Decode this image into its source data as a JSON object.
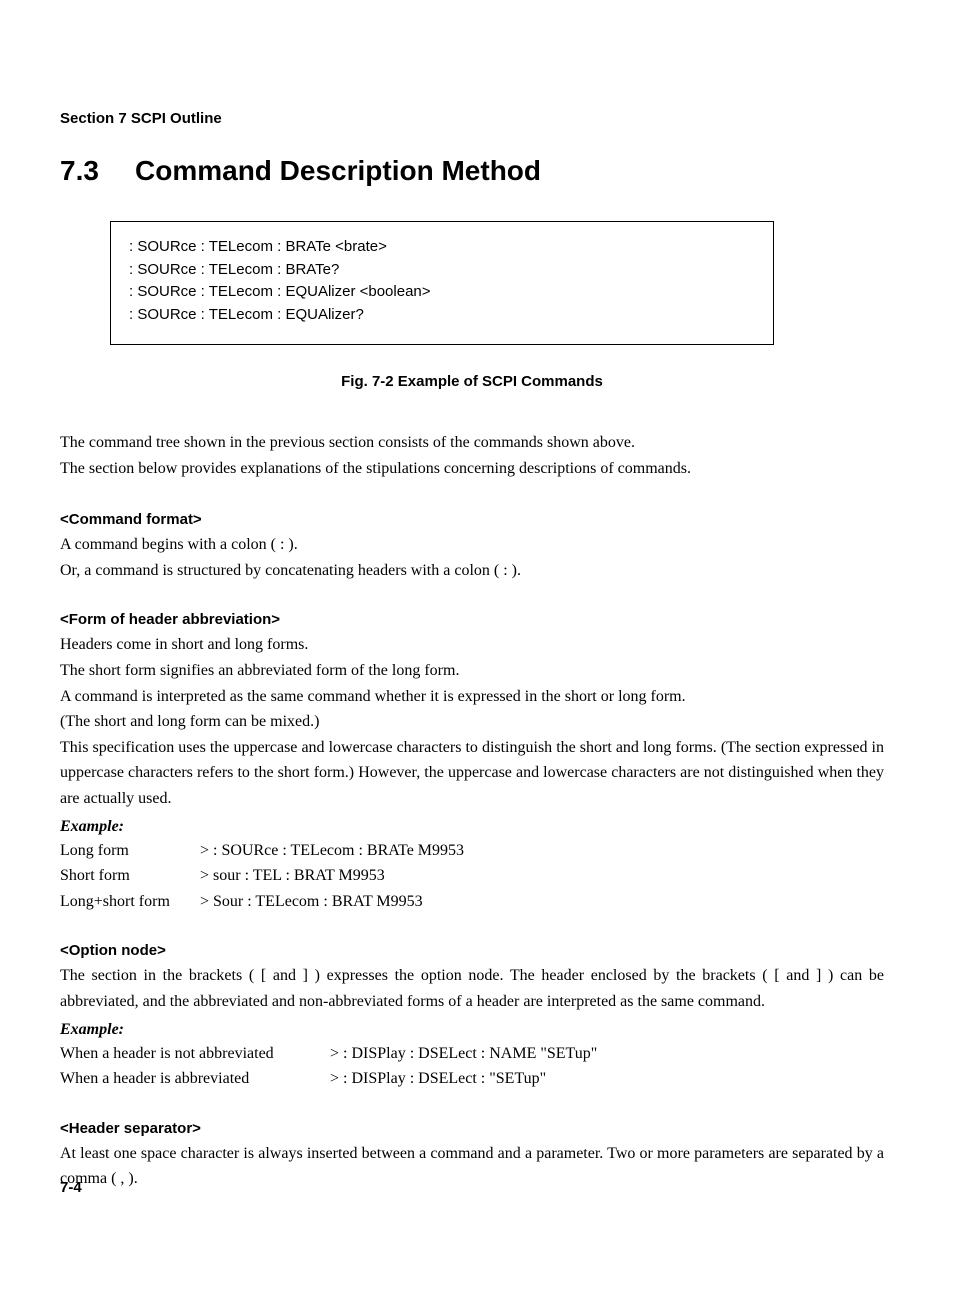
{
  "section_header": "Section 7   SCPI Outline",
  "title_number": "7.3",
  "title_text": "Command Description Method",
  "code_box": {
    "lines": [
      ": SOURce : TELecom : BRATe <brate>",
      ": SOURce : TELecom : BRATe?",
      ": SOURce : TELecom : EQUAlizer <boolean>",
      ": SOURce : TELecom : EQUAlizer?"
    ]
  },
  "fig_caption": "Fig. 7-2   Example of SCPI Commands",
  "intro": [
    "The command tree shown in the previous section consists of the commands shown above.",
    "The section below provides explanations of the stipulations concerning descriptions of commands."
  ],
  "sections": {
    "command_format": {
      "heading": "<Command format>",
      "paras": [
        "A command begins with a colon ( : ).",
        "Or, a command is structured by concatenating headers with a colon ( : )."
      ]
    },
    "header_abbrev": {
      "heading": "<Form of header abbreviation>",
      "paras": [
        "Headers come in short and long forms.",
        "The short form signifies an abbreviated form of the long form.",
        "A command is interpreted as the same command whether it is expressed in the short or long form.",
        "(The short and long form can be mixed.)",
        "This specification uses the uppercase and lowercase characters to distinguish the short and long forms.  (The section expressed in uppercase characters refers to the short form.)  However, the uppercase and lowercase characters are not distinguished when they are actually used."
      ],
      "example_label": "Example:",
      "examples": [
        {
          "label": "Long form",
          "value": "> : SOURce : TELecom : BRATe M9953"
        },
        {
          "label": "Short form",
          "value": "> sour : TEL : BRAT M9953"
        },
        {
          "label": "Long+short form",
          "value": "> Sour : TELecom : BRAT M9953"
        }
      ]
    },
    "option_node": {
      "heading": "<Option node>",
      "paras": [
        "The section in the brackets ( [ and ] ) expresses the option node.  The header enclosed by the brackets ( [ and ] ) can be abbreviated, and the abbreviated and non-abbreviated forms of a header are interpreted as the same command."
      ],
      "example_label": "Example:",
      "examples": [
        {
          "label": "When a header is not abbreviated",
          "value": "> : DISPlay : DSELect : NAME \"SETup\""
        },
        {
          "label": "When a header is abbreviated",
          "value": "> : DISPlay : DSELect : \"SETup\""
        }
      ]
    },
    "header_separator": {
      "heading": "<Header separator>",
      "paras": [
        "At least one space character is always inserted between a command and a parameter.  Two or more parameters are separated by a comma ( , )."
      ]
    }
  },
  "page_number": "7-4"
}
